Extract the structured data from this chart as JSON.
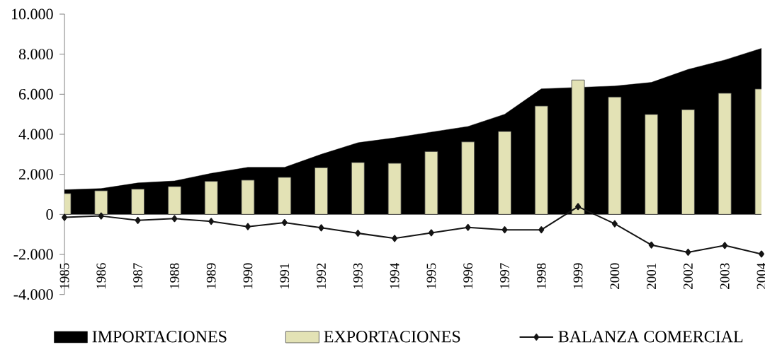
{
  "chart_data": {
    "type": "bar",
    "categories": [
      "1985",
      "1986",
      "1987",
      "1988",
      "1989",
      "1990",
      "1991",
      "1992",
      "1993",
      "1994",
      "1995",
      "1996",
      "1997",
      "1998",
      "1999",
      "2000",
      "2001",
      "2002",
      "2003",
      "2004"
    ],
    "series": [
      {
        "name": "IMPORTACIONES",
        "type": "area",
        "color": "#000000",
        "values": [
          1230,
          1290,
          1570,
          1670,
          2050,
          2350,
          2350,
          3000,
          3580,
          3820,
          4110,
          4390,
          5000,
          6270,
          null,
          6410,
          6590,
          7240,
          7710,
          8290
        ]
      },
      {
        "name": "EXPORTACIONES",
        "color": "#e3e2b5",
        "values": [
          1040,
          1180,
          1260,
          1390,
          1650,
          1710,
          1850,
          2330,
          2590,
          2550,
          3140,
          3620,
          4140,
          5410,
          6710,
          5860,
          4990,
          5230,
          6050,
          6260
        ]
      },
      {
        "name": "BALANZA COMERCIAL",
        "type": "line",
        "color": "#141414",
        "marker": "diamond",
        "line_style": "solid",
        "values": [
          -150,
          -80,
          -300,
          -210,
          -350,
          -610,
          -410,
          -670,
          -940,
          -1200,
          -920,
          -650,
          -770,
          -770,
          390,
          -470,
          -1530,
          -1890,
          -1550,
          -1980
        ]
      }
    ],
    "ylim": [
      -4000,
      10000
    ],
    "yticks": [
      {
        "value": -4000,
        "label": "-4.000"
      },
      {
        "value": -2000,
        "label": "-2.000"
      },
      0,
      {
        "value": 2000,
        "label": "2.000"
      },
      {
        "value": 4000,
        "label": "4.000"
      },
      {
        "value": 6000,
        "label": "6.000"
      },
      {
        "value": 8000,
        "label": "8.000"
      },
      {
        "value": 10000,
        "label": "10.000"
      }
    ],
    "legend": "bottom"
  }
}
